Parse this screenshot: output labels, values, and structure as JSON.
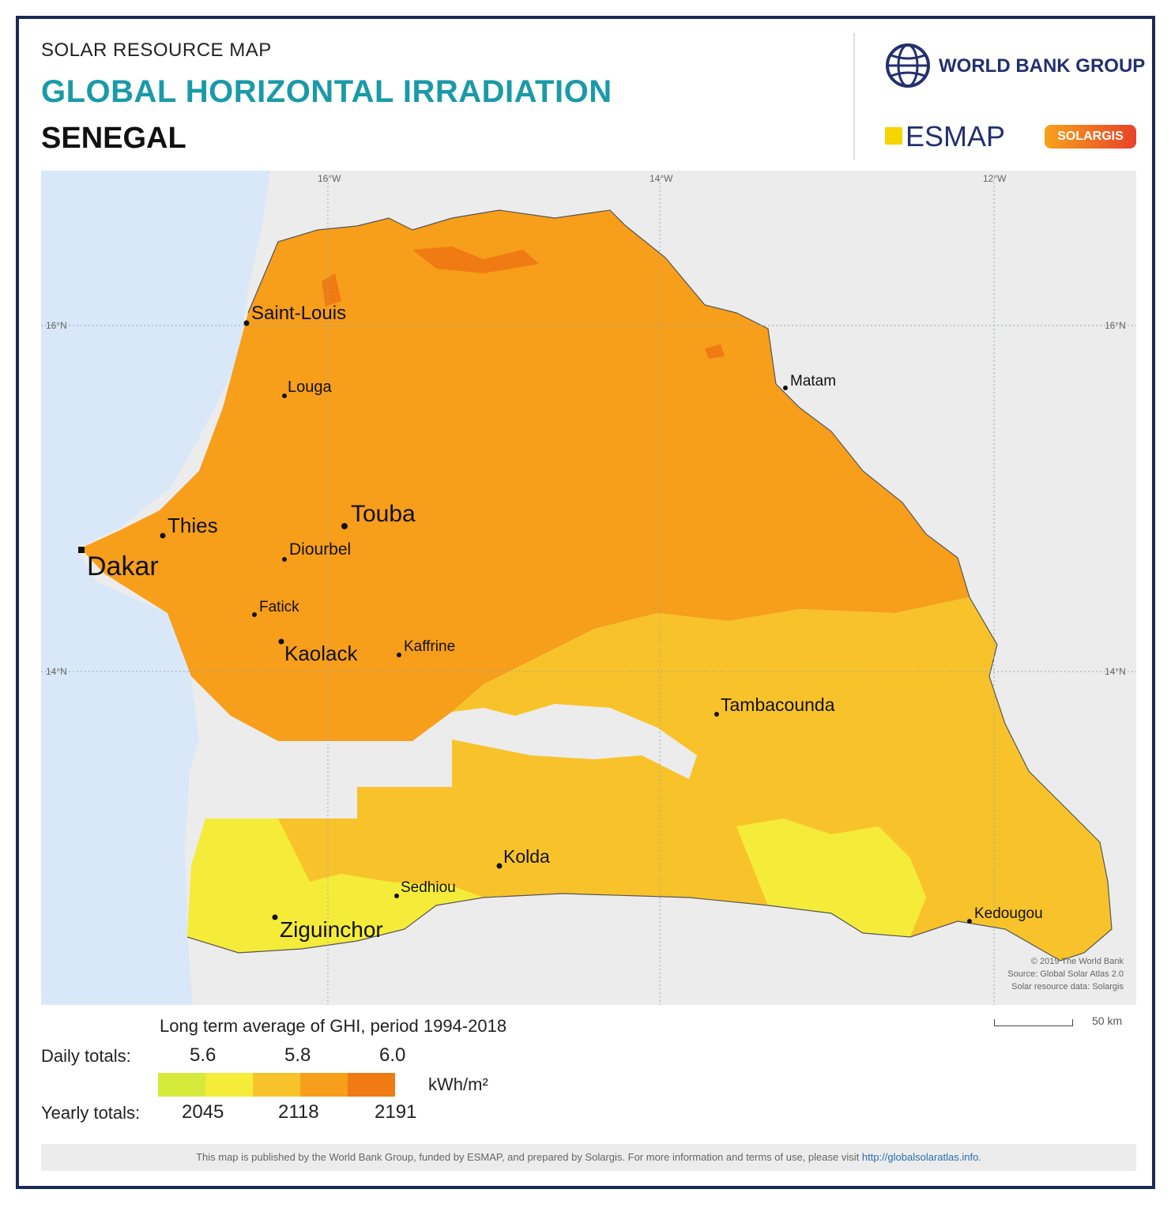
{
  "header": {
    "overline": "SOLAR RESOURCE MAP",
    "title": "GLOBAL HORIZONTAL IRRADIATION",
    "country": "SENEGAL"
  },
  "logos": {
    "world_bank": "WORLD BANK GROUP",
    "esmap": "ESMAP",
    "solargis": "SOLARGIS"
  },
  "map": {
    "graticule": {
      "lon_top": [
        "16°W",
        "14°W",
        "12°W"
      ],
      "lat_left": [
        "16°N",
        "14°N"
      ],
      "lat_right": [
        "16°N",
        "14°N"
      ]
    },
    "cities": [
      {
        "name": "Saint-Louis",
        "size": "medium"
      },
      {
        "name": "Louga",
        "size": "small"
      },
      {
        "name": "Matam",
        "size": "small"
      },
      {
        "name": "Touba",
        "size": "large"
      },
      {
        "name": "Thies",
        "size": "medium"
      },
      {
        "name": "Diourbel",
        "size": "small"
      },
      {
        "name": "Dakar",
        "size": "xlarge"
      },
      {
        "name": "Fatick",
        "size": "small"
      },
      {
        "name": "Kaolack",
        "size": "medium"
      },
      {
        "name": "Kaffrine",
        "size": "small"
      },
      {
        "name": "Tambacounda",
        "size": "medium"
      },
      {
        "name": "Kolda",
        "size": "medium"
      },
      {
        "name": "Sedhiou",
        "size": "small"
      },
      {
        "name": "Ziguinchor",
        "size": "large"
      },
      {
        "name": "Kedougou",
        "size": "small"
      }
    ],
    "credits": [
      "© 2019 The World Bank",
      "Source: Global Solar Atlas 2.0",
      "Solar resource data: Solargis"
    ],
    "scale_label": "50 km",
    "colors": {
      "ocean": "#d9e8f8",
      "land_outside": "#ececec",
      "ghi_5_5": "#d6ea3c",
      "ghi_5_6": "#f5ec3a",
      "ghi_5_7": "#f8c32a",
      "ghi_5_8": "#f79e1b",
      "ghi_6_0": "#f07b12"
    }
  },
  "legend": {
    "title": "Long term average of GHI, period 1994-2018",
    "daily_label": "Daily totals:",
    "daily_values": [
      "5.6",
      "5.8",
      "6.0"
    ],
    "yearly_label": "Yearly totals:",
    "yearly_values": [
      "2045",
      "2118",
      "2191"
    ],
    "unit": "kWh/m²",
    "swatches": [
      "#d6ea3c",
      "#f5ec3a",
      "#f8c32a",
      "#f79e1b",
      "#f07b12"
    ]
  },
  "footer": {
    "text": "This map is published by the World Bank Group, funded by ESMAP, and prepared by Solargis. For more information and terms of use, please visit",
    "link": "http://globalsolaratlas.info."
  }
}
